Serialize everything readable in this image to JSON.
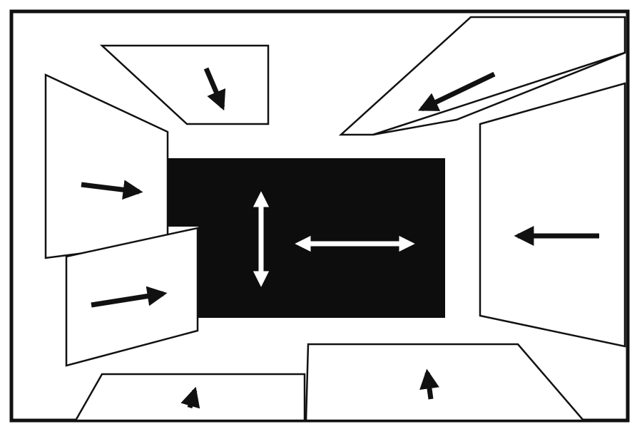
{
  "colors": {
    "background": "#ffffff",
    "ink": "#111111",
    "screen": "#0d0d0d",
    "screen_arrow": "#ffffff"
  },
  "panels": [
    {
      "name": "ceiling-panel-left",
      "arrow": "down"
    },
    {
      "name": "ceiling-panel-right",
      "arrow": "left"
    },
    {
      "name": "wall-panel-left-upper",
      "arrow": "right"
    },
    {
      "name": "wall-panel-left-lower",
      "arrow": "right"
    },
    {
      "name": "wall-panel-right",
      "arrow": "left"
    },
    {
      "name": "floor-panel-left",
      "arrow": "up"
    },
    {
      "name": "floor-panel-right",
      "arrow": "up"
    }
  ],
  "central_screen": {
    "arrows": [
      "vertical-double",
      "horizontal-double"
    ]
  }
}
